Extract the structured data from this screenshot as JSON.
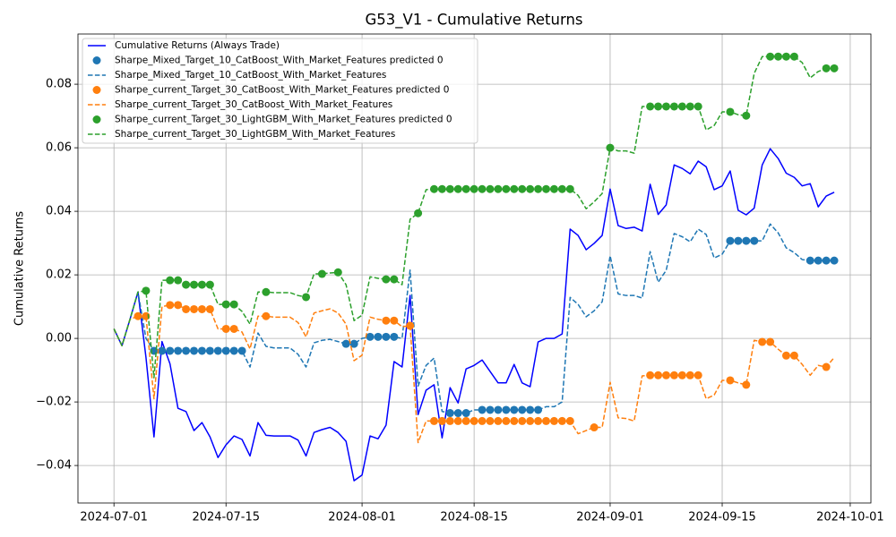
{
  "chart_data": {
    "type": "line",
    "title": "G53_V1 - Cumulative Returns",
    "y_label": "Cumulative Returns",
    "grid": true,
    "legend": "upper left",
    "xlim": [
      "2024-06-26T12:00:00Z",
      "2024-10-03T14:00:00Z"
    ],
    "xticks": [
      "2024-07-01",
      "2024-07-15",
      "2024-08-01",
      "2024-08-15",
      "2024-09-01",
      "2024-09-15",
      "2024-10-01"
    ],
    "ylim": [
      -0.0518,
      0.0958
    ],
    "yticks": [
      {
        "value": -0.04,
        "label": "−0.04"
      },
      {
        "value": -0.02,
        "label": "−0.02"
      },
      {
        "value": 0,
        "label": "0.00"
      },
      {
        "value": 0.02,
        "label": "0.02"
      },
      {
        "value": 0.04,
        "label": "0.04"
      },
      {
        "value": 0.06,
        "label": "0.06"
      },
      {
        "value": 0.08,
        "label": "0.08"
      }
    ],
    "x": [
      "2024-07-01",
      "2024-07-02",
      "2024-07-03",
      "2024-07-04",
      "2024-07-05",
      "2024-07-06",
      "2024-07-07",
      "2024-07-08",
      "2024-07-09",
      "2024-07-10",
      "2024-07-11",
      "2024-07-12",
      "2024-07-13",
      "2024-07-14",
      "2024-07-15",
      "2024-07-16",
      "2024-07-17",
      "2024-07-18",
      "2024-07-19",
      "2024-07-20",
      "2024-07-21",
      "2024-07-22",
      "2024-07-23",
      "2024-07-24",
      "2024-07-25",
      "2024-07-26",
      "2024-07-27",
      "2024-07-28",
      "2024-07-29",
      "2024-07-30",
      "2024-07-31",
      "2024-08-01",
      "2024-08-02",
      "2024-08-03",
      "2024-08-04",
      "2024-08-05",
      "2024-08-06",
      "2024-08-07",
      "2024-08-08",
      "2024-08-09",
      "2024-08-10",
      "2024-08-11",
      "2024-08-12",
      "2024-08-13",
      "2024-08-14",
      "2024-08-15",
      "2024-08-16",
      "2024-08-17",
      "2024-08-18",
      "2024-08-19",
      "2024-08-20",
      "2024-08-21",
      "2024-08-22",
      "2024-08-23",
      "2024-08-24",
      "2024-08-25",
      "2024-08-26",
      "2024-08-27",
      "2024-08-28",
      "2024-08-29",
      "2024-08-30",
      "2024-08-31",
      "2024-09-01",
      "2024-09-02",
      "2024-09-03",
      "2024-09-04",
      "2024-09-05",
      "2024-09-06",
      "2024-09-07",
      "2024-09-08",
      "2024-09-09",
      "2024-09-10",
      "2024-09-11",
      "2024-09-12",
      "2024-09-13",
      "2024-09-14",
      "2024-09-15",
      "2024-09-16",
      "2024-09-17",
      "2024-09-18",
      "2024-09-19",
      "2024-09-20",
      "2024-09-21",
      "2024-09-22",
      "2024-09-23",
      "2024-09-24",
      "2024-09-25",
      "2024-09-26",
      "2024-09-27",
      "2024-09-28",
      "2024-09-29"
    ],
    "series": [
      {
        "name": "Cumulative Returns (Always Trade)",
        "style": "solid",
        "color": "#0000ff",
        "values": [
          0.003,
          -0.0023,
          0.006,
          0.0146,
          -0.006,
          -0.031,
          -0.001,
          -0.008,
          -0.022,
          -0.023,
          -0.029,
          -0.0265,
          -0.031,
          -0.0375,
          -0.0335,
          -0.0307,
          -0.0318,
          -0.037,
          -0.0265,
          -0.0305,
          -0.0307,
          -0.0307,
          -0.0307,
          -0.032,
          -0.037,
          -0.0296,
          -0.0287,
          -0.028,
          -0.0296,
          -0.0324,
          -0.0448,
          -0.043,
          -0.0307,
          -0.0316,
          -0.0273,
          -0.0073,
          -0.009,
          0.0135,
          -0.024,
          -0.0163,
          -0.0146,
          -0.0313,
          -0.0155,
          -0.0203,
          -0.0096,
          -0.0085,
          -0.0068,
          -0.0104,
          -0.014,
          -0.014,
          -0.0082,
          -0.014,
          -0.0152,
          -0.0011,
          0,
          0,
          0.0014,
          0.0344,
          0.0324,
          0.0279,
          0.0299,
          0.0324,
          0.047,
          0.0355,
          0.0346,
          0.035,
          0.0338,
          0.0485,
          0.039,
          0.042,
          0.0546,
          0.0535,
          0.0518,
          0.0558,
          0.054,
          0.0468,
          0.048,
          0.0527,
          0.0403,
          0.0389,
          0.041,
          0.0546,
          0.0597,
          0.0566,
          0.052,
          0.0507,
          0.048,
          0.0487,
          0.0414,
          0.0448,
          0.046
        ]
      },
      {
        "name": "Sharpe_Mixed_Target_10_CatBoost_With_Market_Features predicted 0",
        "style": "markers",
        "color": "#1f77b4",
        "values": [
          null,
          null,
          null,
          null,
          null,
          -0.0039,
          -0.0039,
          -0.0039,
          -0.0039,
          -0.0039,
          -0.0039,
          -0.0039,
          -0.0039,
          -0.0039,
          -0.0039,
          -0.0039,
          -0.0039,
          null,
          null,
          null,
          null,
          null,
          null,
          null,
          null,
          null,
          null,
          null,
          null,
          -0.0017,
          -0.0017,
          null,
          0.0005,
          0.0005,
          0.0005,
          0.0005,
          null,
          null,
          null,
          null,
          null,
          null,
          -0.0235,
          -0.0235,
          -0.0235,
          null,
          -0.0225,
          -0.0225,
          -0.0225,
          -0.0225,
          -0.0225,
          -0.0225,
          -0.0225,
          -0.0225,
          null,
          null,
          null,
          null,
          null,
          null,
          null,
          null,
          null,
          null,
          null,
          null,
          null,
          null,
          null,
          null,
          null,
          null,
          null,
          null,
          null,
          null,
          null,
          0.0307,
          0.0307,
          0.0307,
          0.0307,
          null,
          null,
          null,
          null,
          null,
          null,
          0.0245,
          0.0245,
          0.0245,
          0.0245
        ]
      },
      {
        "name": "Sharpe_Mixed_Target_10_CatBoost_With_Market_Features",
        "style": "dashed",
        "color": "#1f77b4",
        "values": [
          0.003,
          -0.0023,
          0.006,
          0.0146,
          0,
          -0.0039,
          -0.0039,
          -0.0039,
          -0.0039,
          -0.0039,
          -0.0039,
          -0.0039,
          -0.0039,
          -0.0039,
          -0.0039,
          -0.0039,
          -0.0039,
          -0.009,
          0.0017,
          -0.0025,
          -0.003,
          -0.003,
          -0.003,
          -0.005,
          -0.009,
          -0.0014,
          -0.0006,
          -0.0003,
          -0.001,
          -0.0017,
          -0.0017,
          0,
          0.0005,
          0.0005,
          0.0005,
          0.0005,
          0,
          0.0215,
          -0.015,
          -0.0085,
          -0.0062,
          -0.023,
          -0.0235,
          -0.0235,
          -0.0235,
          -0.0225,
          -0.0225,
          -0.0225,
          -0.0225,
          -0.0225,
          -0.0225,
          -0.0225,
          -0.0225,
          -0.0225,
          -0.0215,
          -0.0215,
          -0.02,
          0.0129,
          0.0107,
          0.0068,
          0.0087,
          0.0115,
          0.026,
          0.014,
          0.0135,
          0.0135,
          0.0127,
          0.0273,
          0.0177,
          0.0214,
          0.033,
          0.032,
          0.0304,
          0.0344,
          0.0327,
          0.0253,
          0.0265,
          0.0307,
          0.0307,
          0.0307,
          0.0307,
          0.0307,
          0.036,
          0.0332,
          0.0285,
          0.027,
          0.0248,
          0.0245,
          0.0245,
          0.0245,
          0.0245
        ]
      },
      {
        "name": "Sharpe_current_Target_30_CatBoost_With_Market_Features predicted 0",
        "style": "markers",
        "color": "#ff7f0e",
        "values": [
          null,
          null,
          null,
          0.007,
          0.007,
          null,
          null,
          0.0105,
          0.0105,
          0.0092,
          0.0092,
          0.0092,
          0.0092,
          null,
          0.003,
          0.003,
          null,
          null,
          null,
          0.007,
          null,
          null,
          null,
          null,
          null,
          null,
          null,
          null,
          null,
          null,
          null,
          null,
          null,
          null,
          0.0056,
          0.0056,
          null,
          0.004,
          null,
          null,
          -0.026,
          -0.026,
          -0.026,
          -0.026,
          -0.026,
          -0.026,
          -0.026,
          -0.026,
          -0.026,
          -0.026,
          -0.026,
          -0.026,
          -0.026,
          -0.026,
          -0.026,
          -0.026,
          -0.026,
          -0.026,
          null,
          null,
          -0.028,
          null,
          null,
          null,
          null,
          null,
          null,
          -0.0116,
          -0.0116,
          -0.0116,
          -0.0116,
          -0.0116,
          -0.0116,
          -0.0116,
          null,
          null,
          null,
          -0.0132,
          null,
          -0.0146,
          null,
          -0.0011,
          -0.0011,
          null,
          -0.0054,
          -0.0054,
          null,
          null,
          null,
          -0.009,
          null
        ]
      },
      {
        "name": "Sharpe_current_Target_30_CatBoost_With_Market_Features",
        "style": "dashed",
        "color": "#ff7f0e",
        "values": [
          0.003,
          -0.0023,
          0.006,
          0.007,
          0.007,
          -0.019,
          0.01,
          0.0105,
          0.0105,
          0.0092,
          0.0092,
          0.0092,
          0.0092,
          0.003,
          0.003,
          0.003,
          0.002,
          -0.0033,
          0.007,
          0.007,
          0.0067,
          0.0067,
          0.0067,
          0.005,
          0.0005,
          0.008,
          0.0087,
          0.0093,
          0.008,
          0.0045,
          -0.007,
          -0.0053,
          0.0067,
          0.006,
          0.0056,
          0.0056,
          0.0037,
          0.004,
          -0.0328,
          -0.026,
          -0.026,
          -0.026,
          -0.026,
          -0.026,
          -0.026,
          -0.026,
          -0.026,
          -0.026,
          -0.026,
          -0.026,
          -0.026,
          -0.026,
          -0.026,
          -0.026,
          -0.026,
          -0.026,
          -0.026,
          -0.026,
          -0.03,
          -0.029,
          -0.028,
          -0.028,
          -0.0138,
          -0.025,
          -0.0252,
          -0.026,
          -0.0118,
          -0.0116,
          -0.0116,
          -0.0116,
          -0.0116,
          -0.0116,
          -0.0116,
          -0.0116,
          -0.019,
          -0.0178,
          -0.0132,
          -0.0132,
          -0.014,
          -0.0146,
          -0.0006,
          -0.0011,
          -0.0011,
          -0.0034,
          -0.0054,
          -0.0054,
          -0.0082,
          -0.0116,
          -0.0085,
          -0.009,
          -0.006
        ]
      },
      {
        "name": "Sharpe_current_Target_30_LightGBM_With_Market_Features predicted 0",
        "style": "markers",
        "color": "#2ca02c",
        "values": [
          null,
          null,
          null,
          null,
          0.015,
          null,
          null,
          0.0183,
          0.0183,
          0.0169,
          0.0169,
          0.0169,
          0.0169,
          null,
          0.0107,
          0.0107,
          null,
          null,
          null,
          0.0146,
          null,
          null,
          null,
          null,
          0.013,
          null,
          0.0203,
          null,
          0.0208,
          null,
          null,
          null,
          null,
          null,
          0.0186,
          0.0186,
          null,
          null,
          0.0394,
          null,
          0.047,
          0.047,
          0.047,
          0.047,
          0.047,
          0.047,
          0.047,
          0.047,
          0.047,
          0.047,
          0.047,
          0.047,
          0.047,
          0.047,
          0.047,
          0.047,
          0.047,
          0.047,
          null,
          null,
          null,
          null,
          0.06,
          null,
          null,
          null,
          null,
          0.073,
          0.073,
          0.073,
          0.073,
          0.073,
          0.073,
          0.073,
          null,
          null,
          null,
          0.0713,
          null,
          0.0701,
          null,
          null,
          0.0887,
          0.0887,
          0.0887,
          0.0887,
          null,
          null,
          null,
          0.085,
          0.085
        ]
      },
      {
        "name": "Sharpe_current_Target_30_LightGBM_With_Market_Features",
        "style": "dashed",
        "color": "#2ca02c",
        "values": [
          0.003,
          -0.0023,
          0.006,
          0.0146,
          0.015,
          -0.0124,
          0.0183,
          0.0183,
          0.0183,
          0.0169,
          0.0169,
          0.0169,
          0.0169,
          0.0107,
          0.0107,
          0.0107,
          0.0085,
          0.0045,
          0.0146,
          0.0146,
          0.0144,
          0.0144,
          0.0144,
          0.0135,
          0.013,
          0.0203,
          0.0203,
          0.0206,
          0.0208,
          0.0169,
          0.0056,
          0.0073,
          0.0194,
          0.0189,
          0.0186,
          0.0186,
          0.0169,
          0.0375,
          0.0394,
          0.0468,
          0.047,
          0.047,
          0.047,
          0.047,
          0.047,
          0.047,
          0.047,
          0.047,
          0.047,
          0.047,
          0.047,
          0.047,
          0.047,
          0.047,
          0.047,
          0.047,
          0.047,
          0.047,
          0.045,
          0.0408,
          0.043,
          0.0456,
          0.06,
          0.059,
          0.059,
          0.0583,
          0.073,
          0.073,
          0.073,
          0.073,
          0.073,
          0.073,
          0.073,
          0.073,
          0.0656,
          0.067,
          0.0713,
          0.0713,
          0.0704,
          0.0701,
          0.0834,
          0.0887,
          0.0887,
          0.0887,
          0.0887,
          0.0887,
          0.0868,
          0.082,
          0.084,
          0.085,
          0.085
        ]
      }
    ]
  }
}
